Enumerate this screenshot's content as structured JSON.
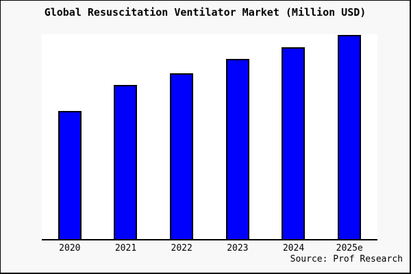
{
  "window": {
    "background_color": "#f8f8f8",
    "plot_background_color": "#ffffff",
    "frame_border_color": "#000000"
  },
  "chart_data": {
    "type": "bar",
    "title": "Global Resuscitation Ventilator Market (Million USD)",
    "categories": [
      "2020",
      "2021",
      "2022",
      "2023",
      "2024",
      "2025e"
    ],
    "values": [
      62.8,
      75.5,
      81.5,
      88.3,
      94.0,
      100.0
    ],
    "units": "Million USD",
    "xlabel": "",
    "ylabel": "",
    "ylim": [
      0,
      100.5
    ],
    "grid": false,
    "y_axis_visible": false,
    "legend": "none",
    "bar_color": "#0000ff",
    "bar_border_color": "#000000",
    "source": "Source: Prof Research"
  }
}
